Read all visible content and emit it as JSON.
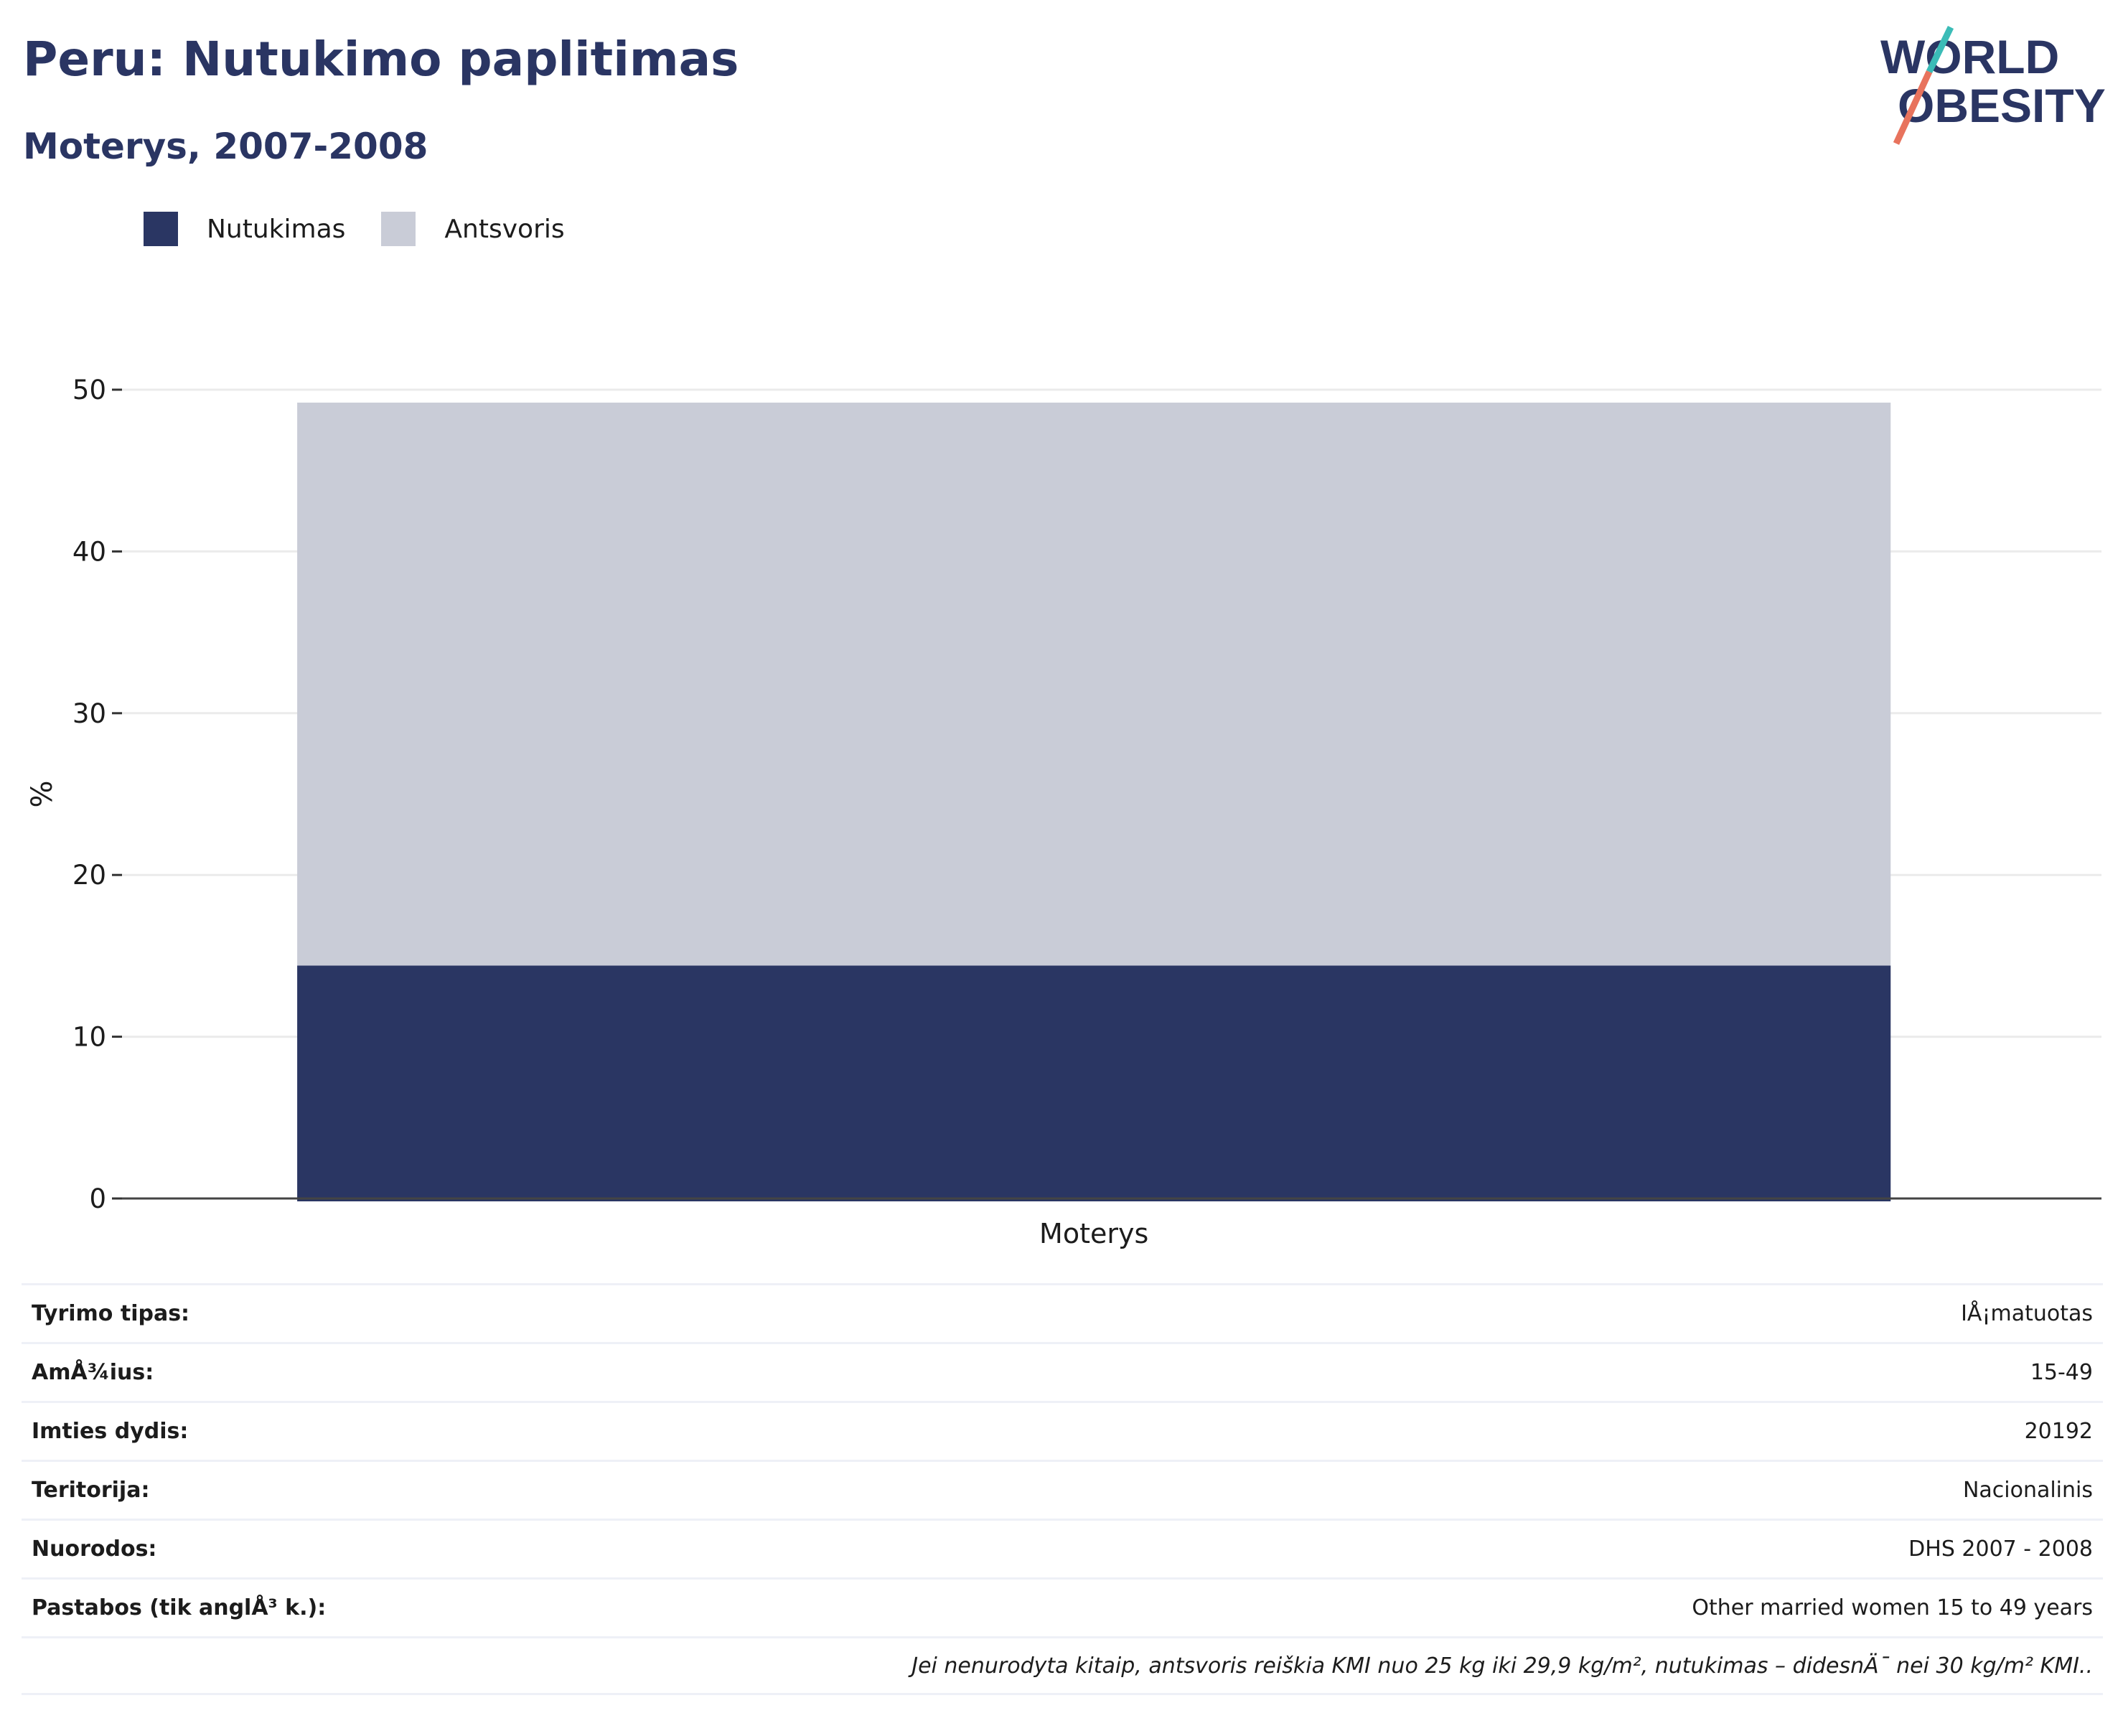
{
  "header": {
    "title": "Peru: Nutukimo paplitimas",
    "subtitle": "Moterys, 2007-2008"
  },
  "logo": {
    "line1": "WORLD",
    "line2": "OBESITY"
  },
  "colors": {
    "obesity": "#2a3663",
    "overweight": "#c9ccd7",
    "title": "#2a3563",
    "logo_teal": "#3bbcb7",
    "logo_coral": "#e8735d"
  },
  "chart_data": {
    "type": "bar",
    "stacked": true,
    "categories": [
      "Moterys"
    ],
    "series": [
      {
        "name": "Nutukimas",
        "values": [
          14.4
        ]
      },
      {
        "name": "Antsvoris",
        "values": [
          34.8
        ]
      }
    ],
    "ylabel": "%",
    "xlabel": "",
    "ylim": [
      0,
      50
    ],
    "yticks": [
      0,
      10,
      20,
      30,
      40,
      50
    ],
    "grid": true,
    "legend_position": "top-left"
  },
  "info_rows": [
    {
      "label": "Tyrimo tipas:",
      "value": "IÅ¡matuotas"
    },
    {
      "label": "AmÅ¾ius:",
      "value": "15-49"
    },
    {
      "label": "Imties dydis:",
      "value": "20192"
    },
    {
      "label": "Teritorija:",
      "value": "Nacionalinis"
    },
    {
      "label": "Nuorodos:",
      "value": "DHS 2007 - 2008"
    },
    {
      "label": "Pastabos (tik anglÅ³ k.):",
      "value": "Other married women 15 to 49 years"
    }
  ],
  "footnote": "Jei nenurodyta kitaip, antsvoris reiškia KMI nuo 25 kg iki 29,9 kg/m², nutukimas – didesnÄ¯ nei 30 kg/m² KMI.."
}
